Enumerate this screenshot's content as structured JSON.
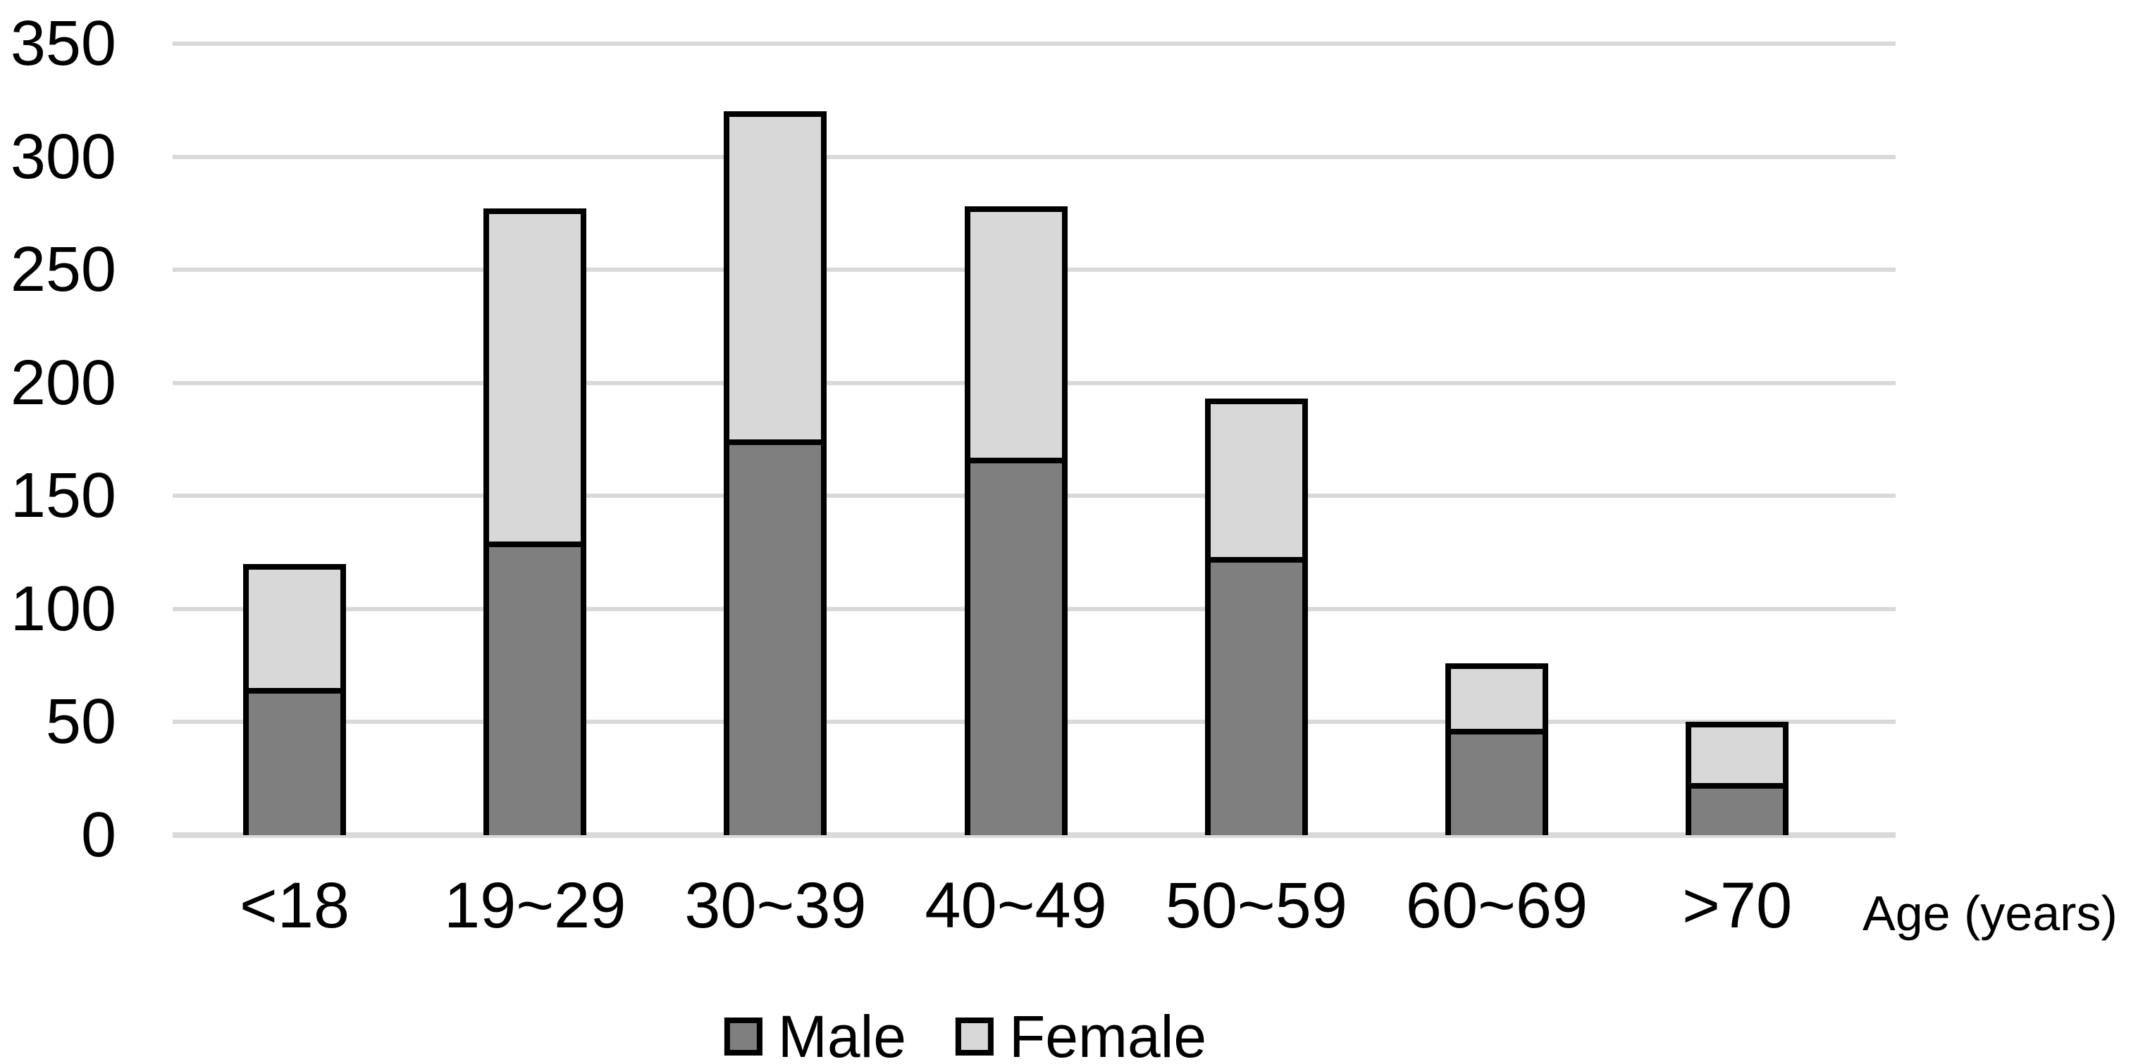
{
  "chart_data": {
    "type": "bar",
    "stacked": true,
    "title": "",
    "xlabel": "Age (years)",
    "ylabel": "",
    "categories": [
      "<18",
      "19~29",
      "30~39",
      "40~49",
      "50~59",
      "60~69",
      ">70"
    ],
    "series": [
      {
        "name": "Male",
        "color": "#7F7F7F",
        "values": [
          65,
          130,
          175,
          167,
          123,
          47,
          23
        ]
      },
      {
        "name": "Female",
        "color": "#D8D8D8",
        "values": [
          55,
          147,
          145,
          111,
          70,
          29,
          27
        ]
      }
    ],
    "totals": [
      120,
      277,
      320,
      278,
      193,
      76,
      50
    ],
    "ylim": [
      0,
      350
    ],
    "yticks": [
      0,
      50,
      100,
      150,
      200,
      250,
      300,
      350
    ],
    "grid": true,
    "legend_position": "bottom",
    "colors": {
      "bar_border": "#000000",
      "gridline": "#D9D9D9",
      "text": "#000000",
      "background": "#FFFFFF"
    }
  }
}
